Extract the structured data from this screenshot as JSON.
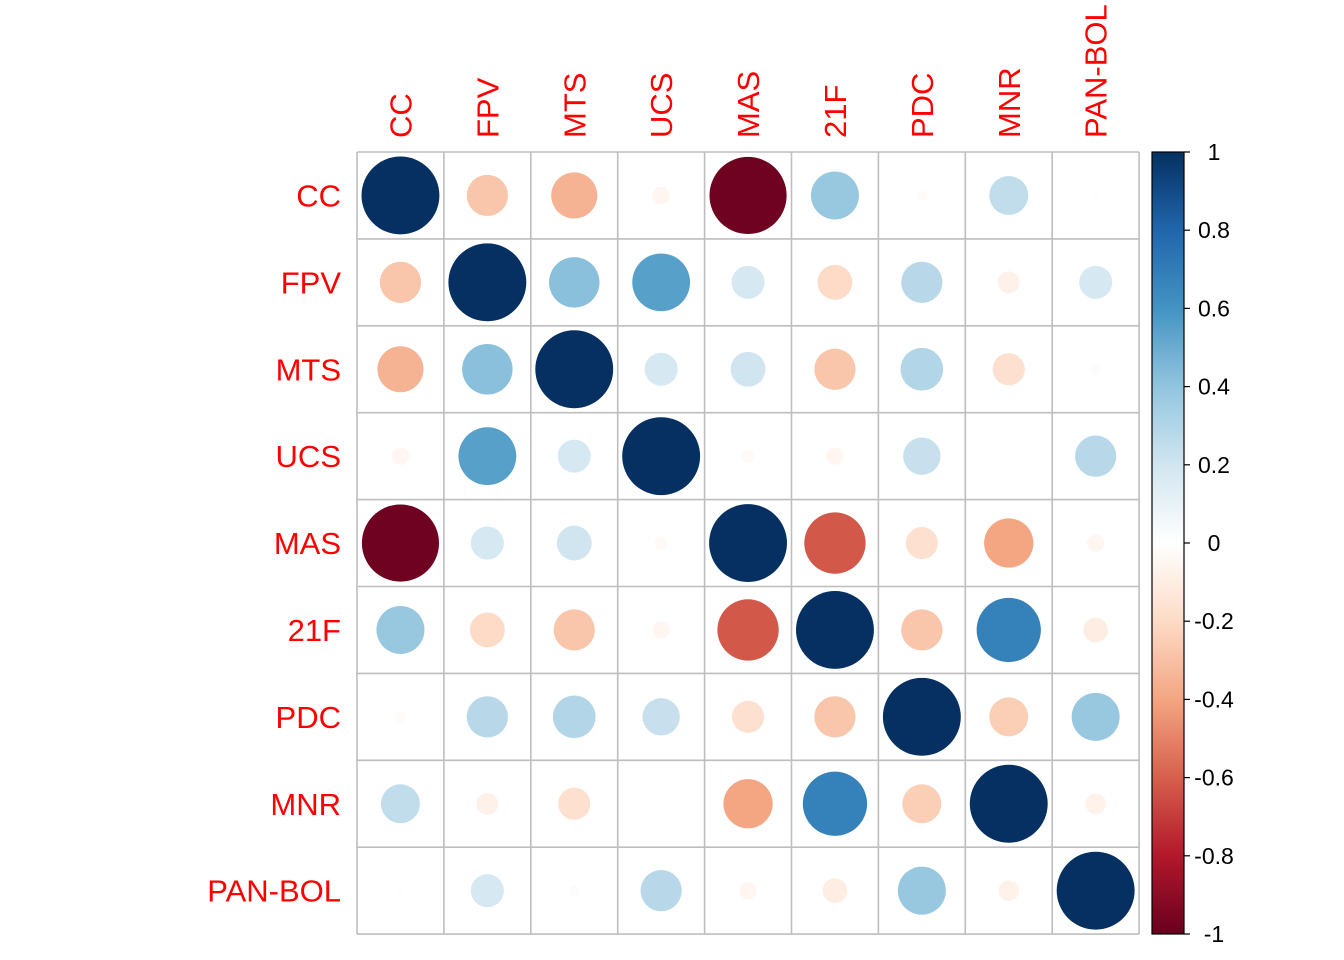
{
  "chart_data": {
    "type": "heatmap",
    "subtype": "correlation-circle-matrix",
    "labels": [
      "CC",
      "FPV",
      "MTS",
      "UCS",
      "MAS",
      "21F",
      "PDC",
      "MNR",
      "PAN-BOL"
    ],
    "matrix": [
      [
        1.0,
        -0.28,
        -0.35,
        -0.05,
        -0.98,
        0.38,
        -0.02,
        0.25,
        0.01
      ],
      [
        -0.28,
        1.0,
        0.42,
        0.55,
        0.18,
        -0.2,
        0.28,
        -0.08,
        0.18
      ],
      [
        -0.35,
        0.42,
        1.0,
        0.18,
        0.2,
        -0.28,
        0.3,
        -0.17,
        0.02
      ],
      [
        -0.05,
        0.55,
        0.18,
        1.0,
        -0.03,
        -0.05,
        0.23,
        0.0,
        0.28
      ],
      [
        -0.98,
        0.18,
        0.2,
        -0.03,
        1.0,
        -0.62,
        -0.17,
        -0.4,
        -0.05
      ],
      [
        0.38,
        -0.2,
        -0.28,
        -0.05,
        -0.62,
        1.0,
        -0.28,
        0.68,
        -0.1
      ],
      [
        -0.02,
        0.28,
        0.3,
        0.23,
        -0.17,
        -0.28,
        1.0,
        -0.25,
        0.38
      ],
      [
        0.25,
        -0.08,
        -0.17,
        0.0,
        -0.4,
        0.68,
        -0.25,
        1.0,
        -0.07
      ],
      [
        0.01,
        0.18,
        0.02,
        0.28,
        -0.05,
        -0.1,
        0.38,
        -0.07,
        1.0
      ]
    ],
    "color_scale": {
      "range": [
        -1,
        1
      ],
      "ticks": [
        "1",
        "0.8",
        "0.6",
        "0.4",
        "0.2",
        "0",
        "-0.2",
        "-0.4",
        "-0.6",
        "-0.8",
        "-1"
      ],
      "stops": [
        "#67001F",
        "#B2182B",
        "#D6604D",
        "#F4A582",
        "#FDDBC7",
        "#FFFFFF",
        "#D1E5F0",
        "#92C5DE",
        "#4393C3",
        "#2166AC",
        "#053061"
      ]
    },
    "label_color": "#FF0000",
    "grid_color": "#BEBEBE",
    "legend_position": "right"
  }
}
